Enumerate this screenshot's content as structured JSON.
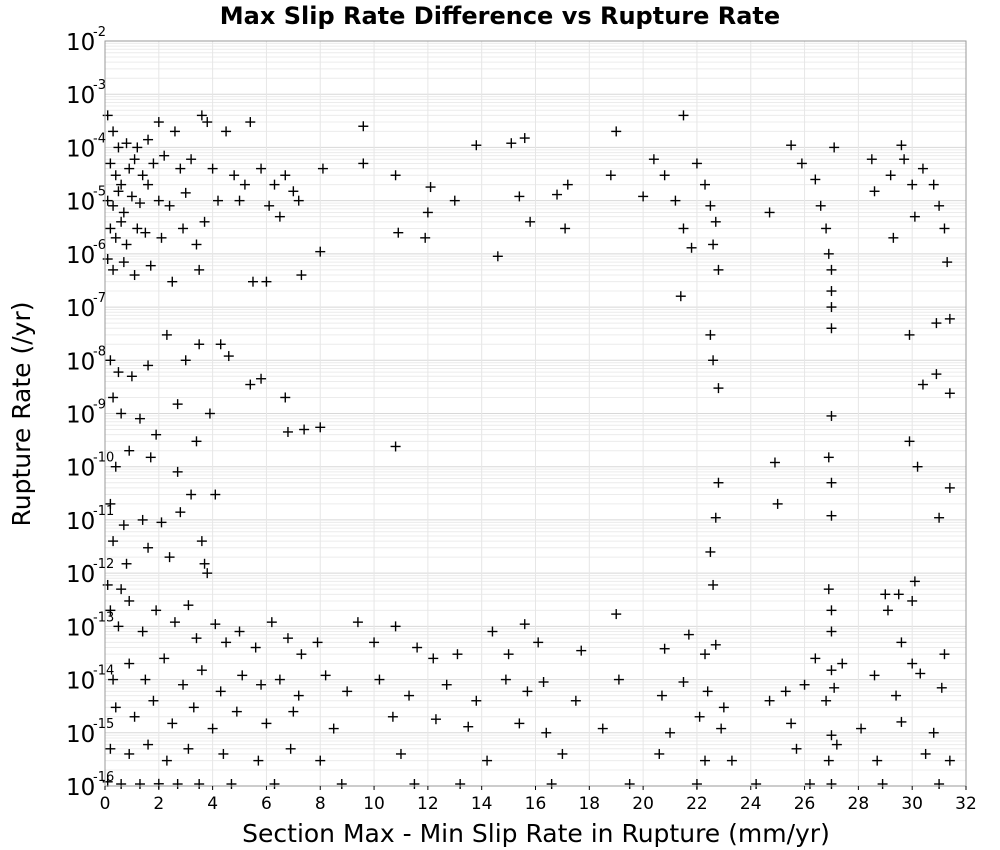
{
  "chart_data": {
    "type": "scatter",
    "title": "Max Slip Rate Difference vs Rupture Rate",
    "xlabel": "Section Max - Min Slip Rate in Rupture (mm/yr)",
    "ylabel": "Rupture Rate (/yr)",
    "xlim": [
      0,
      32
    ],
    "ylim": [
      1e-16,
      0.01
    ],
    "y_scale": "log",
    "grid": true,
    "marker": "plus",
    "marker_color": "#000000",
    "x_ticks": [
      "0",
      "2",
      "4",
      "6",
      "8",
      "10",
      "12",
      "14",
      "16",
      "18",
      "20",
      "22",
      "24",
      "26",
      "28",
      "30",
      "32"
    ],
    "y_ticks": [
      {
        "base": "10",
        "exp": "-2"
      },
      {
        "base": "10",
        "exp": "-3"
      },
      {
        "base": "10",
        "exp": "-4"
      },
      {
        "base": "10",
        "exp": "-5"
      },
      {
        "base": "10",
        "exp": "-6"
      },
      {
        "base": "10",
        "exp": "-7"
      },
      {
        "base": "10",
        "exp": "-8"
      },
      {
        "base": "10",
        "exp": "-9"
      },
      {
        "base": "10",
        "exp": "-10"
      },
      {
        "base": "10",
        "exp": "-11"
      },
      {
        "base": "10",
        "exp": "-12"
      },
      {
        "base": "10",
        "exp": "-13"
      },
      {
        "base": "10",
        "exp": "-14"
      },
      {
        "base": "10",
        "exp": "-15"
      },
      {
        "base": "10",
        "exp": "-16"
      }
    ],
    "points": [
      [
        0.1,
        0.0004
      ],
      [
        0.3,
        0.0002
      ],
      [
        0.5,
        0.0001
      ],
      [
        0.8,
        0.00012
      ],
      [
        1.2,
        0.0001
      ],
      [
        1.6,
        0.00014
      ],
      [
        2.0,
        0.0003
      ],
      [
        2.6,
        0.0002
      ],
      [
        3.6,
        0.0004
      ],
      [
        3.8,
        0.0003
      ],
      [
        4.5,
        0.0002
      ],
      [
        5.4,
        0.0003
      ],
      [
        9.6,
        0.00025
      ],
      [
        21.5,
        0.0004
      ],
      [
        19.0,
        0.0002
      ],
      [
        15.6,
        0.00015
      ],
      [
        15.1,
        0.00012
      ],
      [
        13.8,
        0.00011
      ],
      [
        25.5,
        0.00011
      ],
      [
        29.6,
        0.00011
      ],
      [
        0.2,
        5e-05
      ],
      [
        0.4,
        3e-05
      ],
      [
        0.6,
        2e-05
      ],
      [
        0.9,
        4e-05
      ],
      [
        1.1,
        6e-05
      ],
      [
        1.4,
        3e-05
      ],
      [
        1.8,
        5e-05
      ],
      [
        2.2,
        7e-05
      ],
      [
        2.8,
        4e-05
      ],
      [
        3.2,
        6e-05
      ],
      [
        0.1,
        1e-05
      ],
      [
        0.3,
        8e-06
      ],
      [
        0.5,
        1.5e-05
      ],
      [
        0.7,
        6e-06
      ],
      [
        1.0,
        1.2e-05
      ],
      [
        1.3,
        9e-06
      ],
      [
        1.6,
        2e-05
      ],
      [
        2.0,
        1e-05
      ],
      [
        2.4,
        8e-06
      ],
      [
        3.0,
        1.4e-05
      ],
      [
        0.2,
        3e-06
      ],
      [
        0.4,
        2e-06
      ],
      [
        0.6,
        4e-06
      ],
      [
        0.8,
        1.5e-06
      ],
      [
        1.2,
        3e-06
      ],
      [
        1.5,
        2.5e-06
      ],
      [
        2.1,
        2e-06
      ],
      [
        2.9,
        3e-06
      ],
      [
        3.4,
        1.5e-06
      ],
      [
        3.7,
        4e-06
      ],
      [
        0.1,
        8e-07
      ],
      [
        0.3,
        5e-07
      ],
      [
        0.7,
        7e-07
      ],
      [
        1.1,
        4e-07
      ],
      [
        1.7,
        6e-07
      ],
      [
        2.5,
        3e-07
      ],
      [
        3.5,
        5e-07
      ],
      [
        5.5,
        3e-07
      ],
      [
        6.0,
        3e-07
      ],
      [
        7.3,
        4e-07
      ],
      [
        4.0,
        4e-05
      ],
      [
        4.8,
        3e-05
      ],
      [
        5.2,
        2e-05
      ],
      [
        5.8,
        4e-05
      ],
      [
        6.3,
        2e-05
      ],
      [
        6.7,
        3e-05
      ],
      [
        7.0,
        1.5e-05
      ],
      [
        8.1,
        4e-05
      ],
      [
        9.6,
        5e-05
      ],
      [
        10.8,
        3e-05
      ],
      [
        4.2,
        1e-05
      ],
      [
        5.0,
        1e-05
      ],
      [
        6.1,
        8e-06
      ],
      [
        6.5,
        5e-06
      ],
      [
        7.2,
        1e-05
      ],
      [
        8.0,
        1.1e-06
      ],
      [
        10.9,
        2.5e-06
      ],
      [
        11.9,
        2e-06
      ],
      [
        12.0,
        6e-06
      ],
      [
        12.1,
        1.8e-05
      ],
      [
        13.0,
        1e-05
      ],
      [
        14.6,
        9e-07
      ],
      [
        15.4,
        1.2e-05
      ],
      [
        15.8,
        4e-06
      ],
      [
        16.8,
        1.3e-05
      ],
      [
        17.2,
        2e-05
      ],
      [
        17.1,
        3e-06
      ],
      [
        18.8,
        3e-05
      ],
      [
        20.0,
        1.2e-05
      ],
      [
        20.4,
        6e-05
      ],
      [
        20.8,
        3e-05
      ],
      [
        21.2,
        1e-05
      ],
      [
        21.5,
        3e-06
      ],
      [
        21.8,
        1.3e-06
      ],
      [
        22.0,
        5e-05
      ],
      [
        22.3,
        2e-05
      ],
      [
        22.5,
        8e-06
      ],
      [
        22.7,
        4e-06
      ],
      [
        22.6,
        1.5e-06
      ],
      [
        22.8,
        5e-07
      ],
      [
        21.4,
        1.6e-07
      ],
      [
        22.5,
        3e-08
      ],
      [
        22.6,
        1e-08
      ],
      [
        22.8,
        3e-09
      ],
      [
        24.7,
        6e-06
      ],
      [
        25.9,
        5e-05
      ],
      [
        26.4,
        2.5e-05
      ],
      [
        26.6,
        8e-06
      ],
      [
        26.8,
        3e-06
      ],
      [
        26.9,
        1e-06
      ],
      [
        27.0,
        5e-07
      ],
      [
        27.0,
        2e-07
      ],
      [
        27.0,
        1e-07
      ],
      [
        27.0,
        4e-08
      ],
      [
        27.1,
        0.0001
      ],
      [
        28.5,
        6e-05
      ],
      [
        28.6,
        1.5e-05
      ],
      [
        29.2,
        3e-05
      ],
      [
        29.3,
        2e-06
      ],
      [
        29.7,
        6e-05
      ],
      [
        30.0,
        2e-05
      ],
      [
        30.1,
        5e-06
      ],
      [
        30.4,
        4e-05
      ],
      [
        30.8,
        2e-05
      ],
      [
        31.0,
        8e-06
      ],
      [
        31.2,
        3e-06
      ],
      [
        31.3,
        7e-07
      ],
      [
        31.4,
        6e-08
      ],
      [
        30.9,
        5e-08
      ],
      [
        29.9,
        3e-08
      ],
      [
        0.2,
        1e-08
      ],
      [
        0.5,
        6e-09
      ],
      [
        1.0,
        5e-09
      ],
      [
        1.6,
        8e-09
      ],
      [
        2.3,
        3e-08
      ],
      [
        3.0,
        1e-08
      ],
      [
        3.5,
        2e-08
      ],
      [
        4.3,
        2e-08
      ],
      [
        4.6,
        1.2e-08
      ],
      [
        5.4,
        3.5e-09
      ],
      [
        5.8,
        4.5e-09
      ],
      [
        6.7,
        2e-09
      ],
      [
        6.8,
        4.5e-10
      ],
      [
        7.4,
        5e-10
      ],
      [
        8.0,
        5.5e-10
      ],
      [
        0.3,
        2e-09
      ],
      [
        0.6,
        1e-09
      ],
      [
        1.3,
        8e-10
      ],
      [
        1.9,
        4e-10
      ],
      [
        2.7,
        1.5e-09
      ],
      [
        3.4,
        3e-10
      ],
      [
        3.9,
        1e-09
      ],
      [
        10.8,
        2.4e-10
      ],
      [
        30.4,
        3.5e-09
      ],
      [
        30.9,
        5.5e-09
      ],
      [
        31.4,
        2.4e-09
      ],
      [
        29.9,
        3e-10
      ],
      [
        27.0,
        9e-10
      ],
      [
        0.4,
        1e-10
      ],
      [
        0.9,
        2e-10
      ],
      [
        1.7,
        1.5e-10
      ],
      [
        2.7,
        8e-11
      ],
      [
        3.2,
        3e-11
      ],
      [
        4.1,
        3e-11
      ],
      [
        0.2,
        2e-11
      ],
      [
        0.7,
        8e-12
      ],
      [
        1.4,
        1e-11
      ],
      [
        2.1,
        9e-12
      ],
      [
        2.8,
        1.4e-11
      ],
      [
        3.6,
        4e-12
      ],
      [
        24.9,
        1.2e-10
      ],
      [
        25.0,
        2e-11
      ],
      [
        26.9,
        1.5e-10
      ],
      [
        27.0,
        5e-11
      ],
      [
        27.0,
        1.2e-11
      ],
      [
        30.2,
        1e-10
      ],
      [
        31.0,
        1.1e-11
      ],
      [
        31.4,
        4e-11
      ],
      [
        22.8,
        5e-11
      ],
      [
        22.7,
        1.1e-11
      ],
      [
        22.5,
        2.5e-12
      ],
      [
        22.6,
        6e-13
      ],
      [
        0.3,
        4e-12
      ],
      [
        0.8,
        1.5e-12
      ],
      [
        1.6,
        3e-12
      ],
      [
        2.4,
        2e-12
      ],
      [
        3.7,
        1.5e-12
      ],
      [
        3.8,
        1e-12
      ],
      [
        0.1,
        6e-13
      ],
      [
        0.6,
        5e-13
      ],
      [
        29.0,
        4e-13
      ],
      [
        29.5,
        4e-13
      ],
      [
        30.0,
        3e-13
      ],
      [
        30.1,
        7e-13
      ],
      [
        29.1,
        2e-13
      ],
      [
        19.0,
        1.7e-13
      ],
      [
        26.9,
        5e-13
      ],
      [
        27.0,
        2e-13
      ],
      [
        29.6,
        5e-14
      ],
      [
        27.0,
        8e-14
      ],
      [
        0.2,
        2e-13
      ],
      [
        0.5,
        1e-13
      ],
      [
        0.9,
        3e-13
      ],
      [
        1.4,
        8e-14
      ],
      [
        1.9,
        2e-13
      ],
      [
        2.6,
        1.2e-13
      ],
      [
        3.1,
        2.5e-13
      ],
      [
        3.4,
        6e-14
      ],
      [
        4.1,
        1.1e-13
      ],
      [
        4.5,
        5e-14
      ],
      [
        5.0,
        8e-14
      ],
      [
        5.6,
        4e-14
      ],
      [
        6.2,
        1.2e-13
      ],
      [
        6.8,
        6e-14
      ],
      [
        7.3,
        3e-14
      ],
      [
        7.9,
        5e-14
      ],
      [
        9.4,
        1.2e-13
      ],
      [
        10.0,
        5e-14
      ],
      [
        10.8,
        1e-13
      ],
      [
        11.6,
        4e-14
      ],
      [
        12.2,
        2.5e-14
      ],
      [
        13.1,
        3e-14
      ],
      [
        14.4,
        8e-14
      ],
      [
        15.0,
        3e-14
      ],
      [
        15.6,
        1.1e-13
      ],
      [
        16.1,
        5e-14
      ],
      [
        17.7,
        3.5e-14
      ],
      [
        20.8,
        3.8e-14
      ],
      [
        21.7,
        7e-14
      ],
      [
        22.3,
        3e-14
      ],
      [
        22.7,
        4.5e-14
      ],
      [
        26.4,
        2.5e-14
      ],
      [
        27.0,
        1.5e-14
      ],
      [
        27.4,
        2e-14
      ],
      [
        30.0,
        2e-14
      ],
      [
        31.2,
        3e-14
      ],
      [
        0.3,
        1e-14
      ],
      [
        0.9,
        2e-14
      ],
      [
        1.5,
        1e-14
      ],
      [
        2.2,
        2.5e-14
      ],
      [
        2.9,
        8e-15
      ],
      [
        3.6,
        1.5e-14
      ],
      [
        4.3,
        6e-15
      ],
      [
        5.1,
        1.2e-14
      ],
      [
        5.8,
        8e-15
      ],
      [
        6.5,
        1e-14
      ],
      [
        7.2,
        5e-15
      ],
      [
        8.2,
        1.2e-14
      ],
      [
        9.0,
        6e-15
      ],
      [
        10.2,
        1e-14
      ],
      [
        11.3,
        5e-15
      ],
      [
        12.7,
        8e-15
      ],
      [
        13.8,
        4e-15
      ],
      [
        14.9,
        1e-14
      ],
      [
        15.7,
        6e-15
      ],
      [
        16.3,
        9e-15
      ],
      [
        17.5,
        4e-15
      ],
      [
        19.1,
        1e-14
      ],
      [
        20.7,
        5e-15
      ],
      [
        21.5,
        9e-15
      ],
      [
        22.4,
        6e-15
      ],
      [
        23.0,
        3e-15
      ],
      [
        24.7,
        4e-15
      ],
      [
        25.3,
        6e-15
      ],
      [
        26.0,
        8e-15
      ],
      [
        26.8,
        4e-15
      ],
      [
        27.1,
        7e-15
      ],
      [
        28.6,
        1.2e-14
      ],
      [
        29.4,
        5e-15
      ],
      [
        30.3,
        1.3e-14
      ],
      [
        31.1,
        7e-15
      ],
      [
        0.4,
        3e-15
      ],
      [
        1.1,
        2e-15
      ],
      [
        1.8,
        4e-15
      ],
      [
        2.5,
        1.5e-15
      ],
      [
        3.3,
        3e-15
      ],
      [
        4.0,
        1.2e-15
      ],
      [
        4.9,
        2.5e-15
      ],
      [
        6.0,
        1.5e-15
      ],
      [
        7.0,
        2.5e-15
      ],
      [
        8.5,
        1.2e-15
      ],
      [
        10.7,
        2e-15
      ],
      [
        12.3,
        1.8e-15
      ],
      [
        13.5,
        1.3e-15
      ],
      [
        15.4,
        1.5e-15
      ],
      [
        16.4,
        1e-15
      ],
      [
        18.5,
        1.2e-15
      ],
      [
        21.0,
        1e-15
      ],
      [
        22.1,
        2e-15
      ],
      [
        22.9,
        1.2e-15
      ],
      [
        25.5,
        1.5e-15
      ],
      [
        27.0,
        9e-16
      ],
      [
        28.1,
        1.2e-15
      ],
      [
        29.6,
        1.6e-15
      ],
      [
        30.8,
        1e-15
      ],
      [
        0.2,
        5e-16
      ],
      [
        0.9,
        4e-16
      ],
      [
        1.6,
        6e-16
      ],
      [
        2.3,
        3e-16
      ],
      [
        3.1,
        5e-16
      ],
      [
        4.4,
        4e-16
      ],
      [
        5.7,
        3e-16
      ],
      [
        6.9,
        5e-16
      ],
      [
        8.0,
        3e-16
      ],
      [
        11.0,
        4e-16
      ],
      [
        14.2,
        3e-16
      ],
      [
        17.0,
        4e-16
      ],
      [
        20.6,
        4e-16
      ],
      [
        22.3,
        3e-16
      ],
      [
        23.3,
        3e-16
      ],
      [
        25.7,
        5e-16
      ],
      [
        26.9,
        3e-16
      ],
      [
        27.2,
        6e-16
      ],
      [
        28.7,
        3e-16
      ],
      [
        30.5,
        4e-16
      ],
      [
        31.4,
        3e-16
      ],
      [
        0.1,
        1.2e-16
      ],
      [
        0.6,
        1e-16
      ],
      [
        1.3,
        1e-16
      ],
      [
        2.0,
        1.1e-16
      ],
      [
        2.7,
        1e-16
      ],
      [
        3.5,
        1e-16
      ],
      [
        4.7,
        1e-16
      ],
      [
        6.3,
        1e-16
      ],
      [
        8.8,
        1e-16
      ],
      [
        11.5,
        1e-16
      ],
      [
        13.2,
        1e-16
      ],
      [
        16.6,
        1e-16
      ],
      [
        19.5,
        1e-16
      ],
      [
        22.0,
        1e-16
      ],
      [
        24.2,
        1e-16
      ],
      [
        26.2,
        1e-16
      ],
      [
        27.0,
        1e-16
      ],
      [
        28.9,
        1e-16
      ],
      [
        31.0,
        1e-16
      ]
    ]
  }
}
